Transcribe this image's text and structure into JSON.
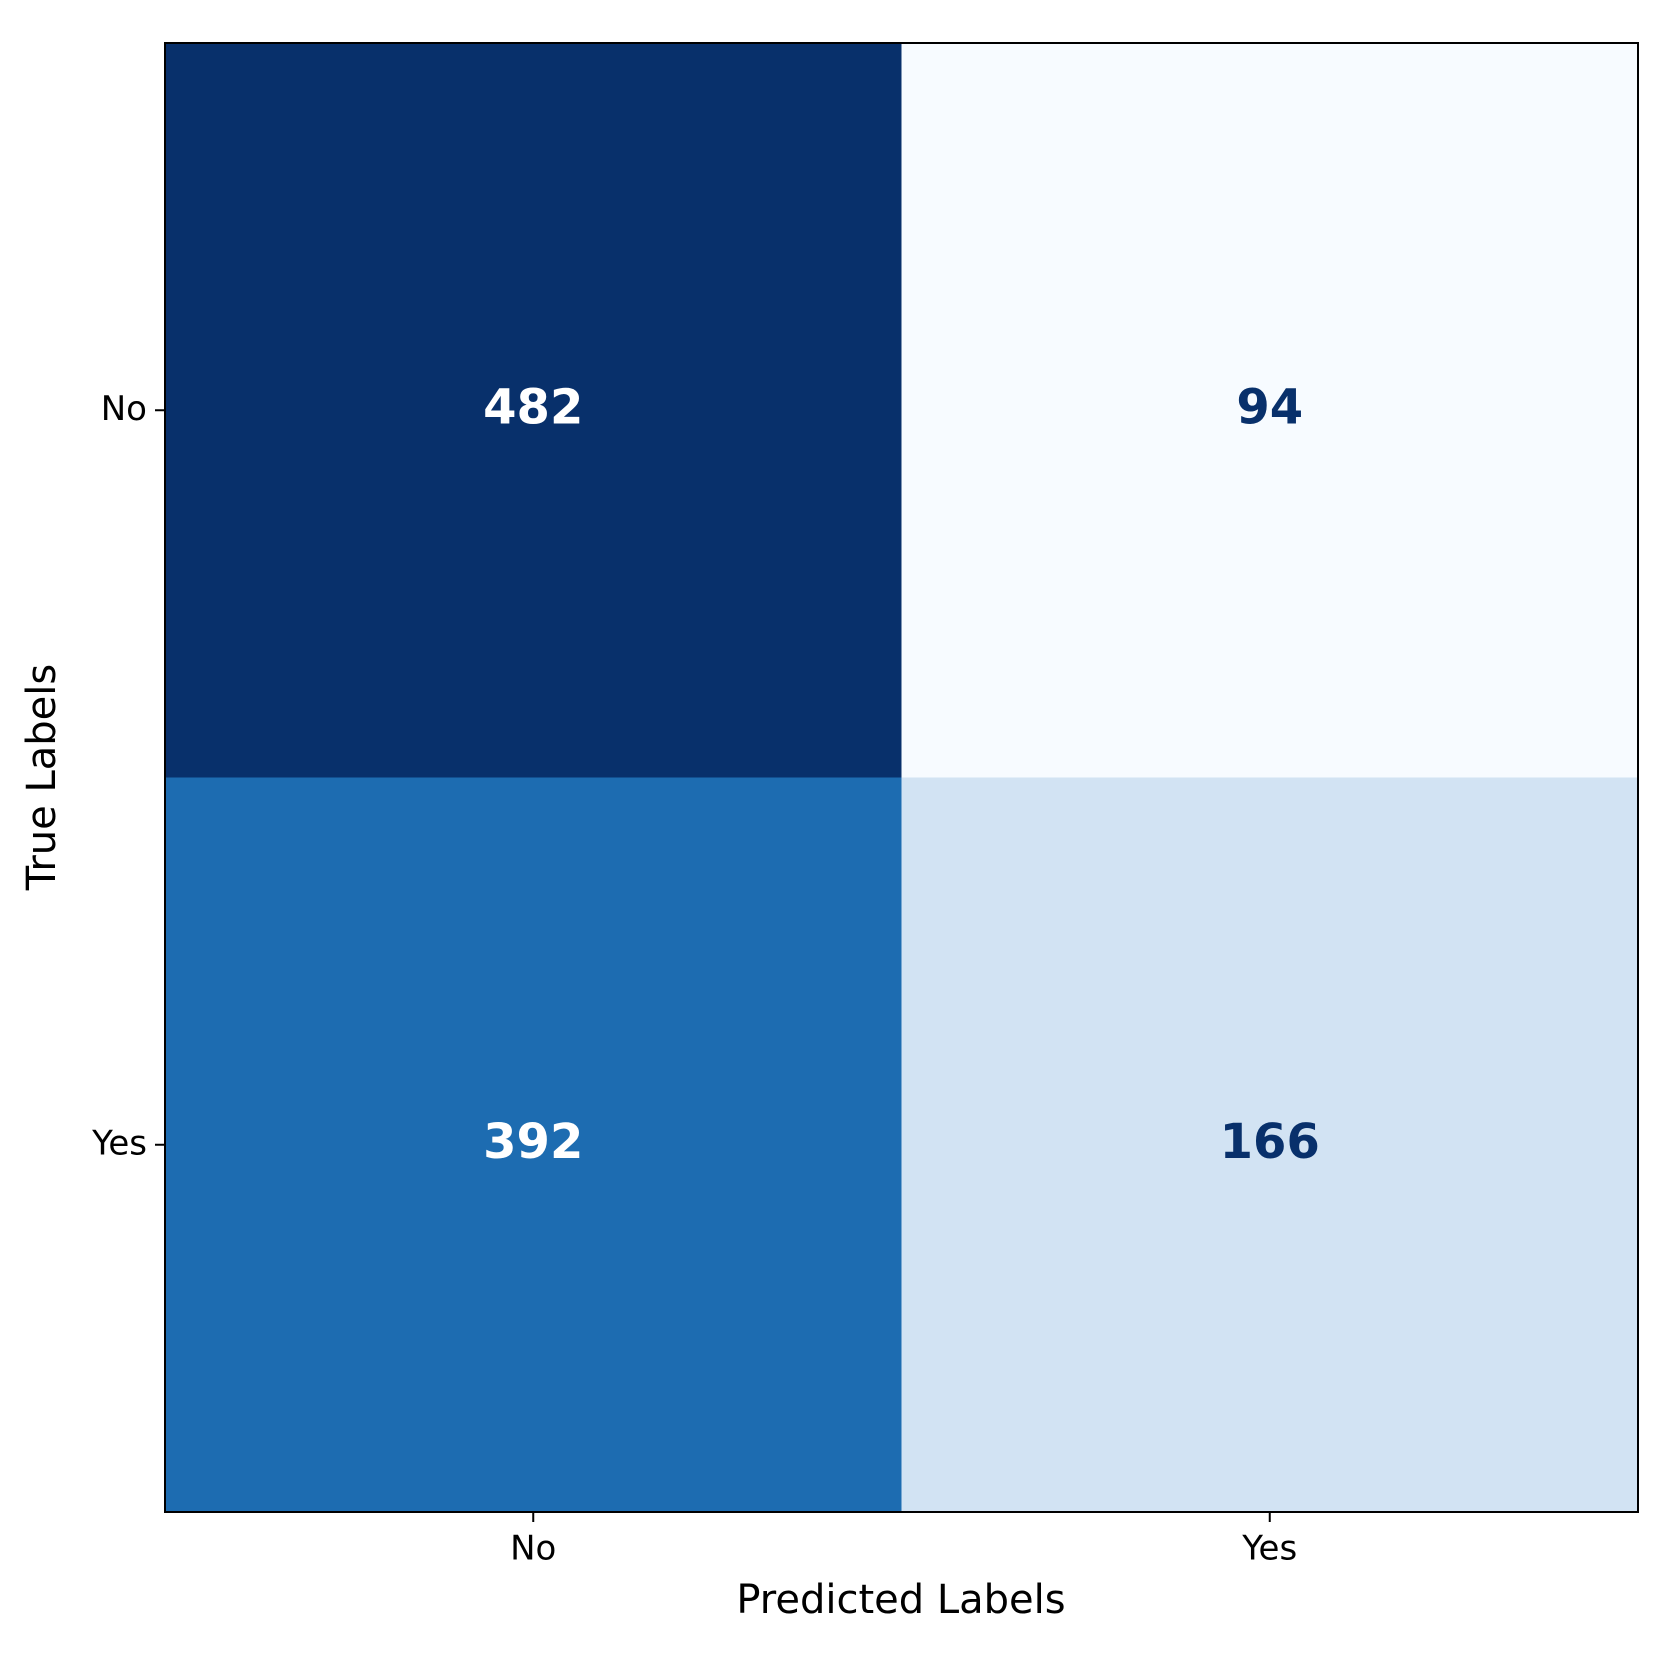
{
  "chart_data": {
    "type": "heatmap",
    "colormap": "Blues",
    "x_categories": [
      "No",
      "Yes"
    ],
    "y_categories": [
      "No",
      "Yes"
    ],
    "values": [
      [
        482,
        94
      ],
      [
        392,
        166
      ]
    ],
    "xlabel": "Predicted Labels",
    "ylabel": "True Labels"
  }
}
